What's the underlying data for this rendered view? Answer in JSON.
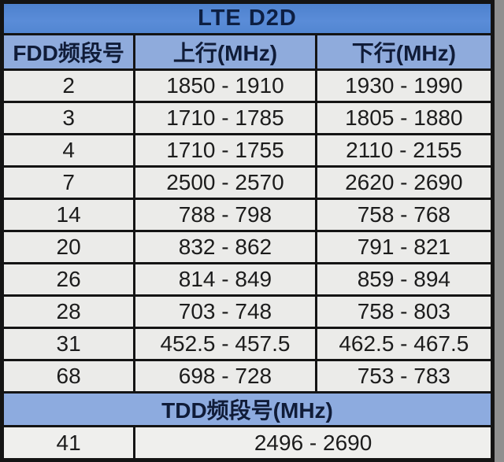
{
  "title": "LTE D2D",
  "columns": [
    "FDD频段号",
    "上行(MHz)",
    "下行(MHz)"
  ],
  "fdd_rows": [
    {
      "band": "2",
      "uplink": "1850 - 1910",
      "downlink": "1930 - 1990"
    },
    {
      "band": "3",
      "uplink": "1710 - 1785",
      "downlink": "1805 - 1880"
    },
    {
      "band": "4",
      "uplink": "1710 - 1755",
      "downlink": "2110 - 2155"
    },
    {
      "band": "7",
      "uplink": "2500 - 2570",
      "downlink": "2620 - 2690"
    },
    {
      "band": "14",
      "uplink": "788 - 798",
      "downlink": "758 - 768"
    },
    {
      "band": "20",
      "uplink": "832 - 862",
      "downlink": "791 - 821"
    },
    {
      "band": "26",
      "uplink": "814 - 849",
      "downlink": "859 - 894"
    },
    {
      "band": "28",
      "uplink": "703 - 748",
      "downlink": "758 - 803"
    },
    {
      "band": "31",
      "uplink": "452.5 - 457.5",
      "downlink": "462.5 - 467.5"
    },
    {
      "band": "68",
      "uplink": "698 - 728",
      "downlink": "753 - 783"
    }
  ],
  "tdd_section_title": "TDD频段号(MHz)",
  "tdd_rows": [
    {
      "band": "41",
      "range": "2496 - 2690"
    }
  ],
  "colors": {
    "title_bg": "#5286d1",
    "header_bg": "#8fabdc",
    "tdd_header_bg": "#8dabdf",
    "cell_bg": "#ebebe9",
    "border": "#141414",
    "header_text": "#101c38",
    "cell_text": "#1c1c1c"
  }
}
